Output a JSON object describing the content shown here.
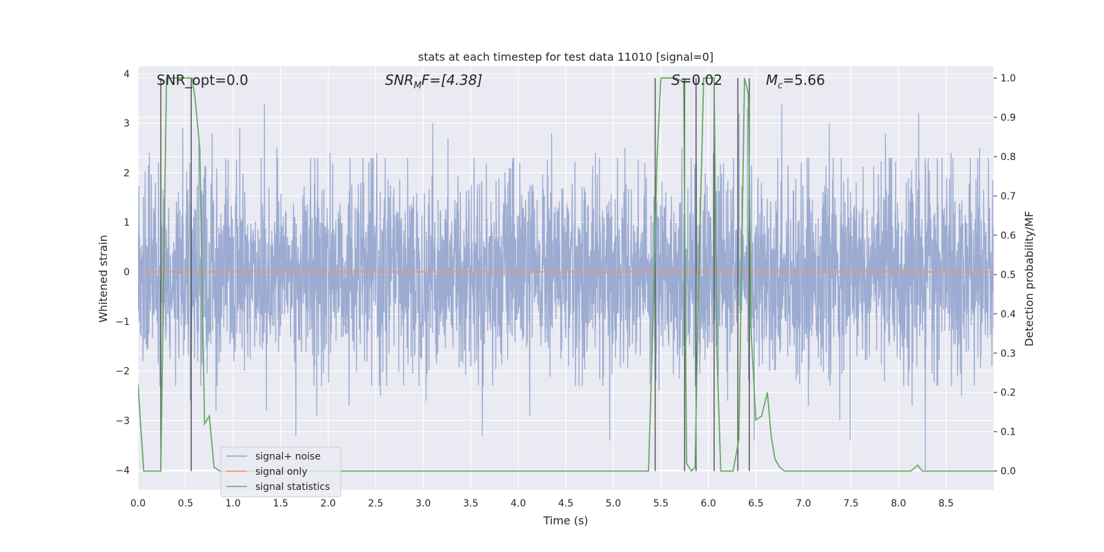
{
  "chart_data": {
    "type": "line",
    "title": "stats at each timestep for test data 11010 [signal=0]",
    "xlabel": "Time (s)",
    "ylabel_left": "Whitened strain",
    "ylabel_right": "Detection probability/MF",
    "xlim": [
      0,
      9.0
    ],
    "ylim_left": [
      -4.4,
      4.15
    ],
    "ylim_right": [
      -0.048,
      1.03
    ],
    "x_ticks": [
      "0.0",
      "0.5",
      "1.0",
      "1.5",
      "2.0",
      "2.5",
      "3.0",
      "3.5",
      "4.0",
      "4.5",
      "5.0",
      "5.5",
      "6.0",
      "6.5",
      "7.0",
      "7.5",
      "8.0",
      "8.5"
    ],
    "y_left_ticks": [
      "−4",
      "−3",
      "−2",
      "−1",
      "0",
      "1",
      "2",
      "3",
      "4"
    ],
    "y_right_ticks": [
      "0.0",
      "0.1",
      "0.2",
      "0.3",
      "0.4",
      "0.5",
      "0.6",
      "0.7",
      "0.8",
      "0.9",
      "1.0"
    ],
    "grid": true,
    "legend_position": "lower-left",
    "annotations": {
      "snr_opt": "SNR_opt=0.0",
      "snr_mf_main": "SNR",
      "snr_mf_sub": "M",
      "snr_mf_rest": "F=[4.38]",
      "s_italic": "S",
      "s_rest": "=0.02",
      "mc_main": "M",
      "mc_sub": "c",
      "mc_rest": "=5.66"
    },
    "series": [
      {
        "name": "signal+ noise",
        "axis": "left",
        "color": "#8da0cb",
        "amplitude_sigma": 0.95,
        "peak_samples": [
          [
            0.12,
            2.4
          ],
          [
            0.23,
            -2.3
          ],
          [
            0.47,
            2.9
          ],
          [
            0.55,
            -2.6
          ],
          [
            0.64,
            2.6
          ],
          [
            0.78,
            2.8
          ],
          [
            0.82,
            -2.8
          ],
          [
            1.07,
            2.9
          ],
          [
            1.12,
            -2.0
          ],
          [
            1.33,
            3.4
          ],
          [
            1.35,
            -2.8
          ],
          [
            1.46,
            2.5
          ],
          [
            1.66,
            -3.3
          ],
          [
            1.88,
            -2.9
          ],
          [
            2.02,
            2.4
          ],
          [
            2.22,
            -2.7
          ],
          [
            2.51,
            2.4
          ],
          [
            2.55,
            -2.5
          ],
          [
            3.03,
            -2.6
          ],
          [
            3.1,
            3.0
          ],
          [
            3.26,
            2.7
          ],
          [
            3.62,
            -3.3
          ],
          [
            3.95,
            2.3
          ],
          [
            4.12,
            -2.9
          ],
          [
            4.35,
            2.8
          ],
          [
            4.81,
            2.4
          ],
          [
            4.96,
            -3.4
          ],
          [
            5.12,
            2.5
          ],
          [
            5.33,
            2.2
          ],
          [
            5.48,
            -2.4
          ],
          [
            5.72,
            2.5
          ],
          [
            5.86,
            -2.3
          ],
          [
            6.05,
            2.4
          ],
          [
            6.2,
            -2.6
          ],
          [
            6.32,
            3.2
          ],
          [
            6.41,
            3.3
          ],
          [
            6.48,
            -3.4
          ],
          [
            6.77,
            3.4
          ],
          [
            7.05,
            -2.7
          ],
          [
            7.27,
            3.0
          ],
          [
            7.38,
            -3.0
          ],
          [
            7.49,
            -3.4
          ],
          [
            7.86,
            2.8
          ],
          [
            8.14,
            -2.7
          ],
          [
            8.21,
            3.2
          ],
          [
            8.28,
            -4.0
          ],
          [
            8.55,
            2.4
          ],
          [
            8.66,
            -2.5
          ],
          [
            8.85,
            2.5
          ],
          [
            8.98,
            -1.9
          ]
        ]
      },
      {
        "name": "signal only",
        "axis": "left",
        "color": "#fc8d62",
        "x": [
          0,
          9.0
        ],
        "y": [
          0,
          0
        ]
      },
      {
        "name": "signal statistics",
        "axis": "right",
        "color": "#66a961",
        "x": [
          0.0,
          0.06,
          0.12,
          0.18,
          0.24,
          0.3,
          0.36,
          0.42,
          0.48,
          0.54,
          0.57,
          0.6,
          0.65,
          0.7,
          0.75,
          0.8,
          0.86,
          0.92,
          1.0,
          2.0,
          3.0,
          4.0,
          5.0,
          5.37,
          5.42,
          5.46,
          5.5,
          5.55,
          5.6,
          5.66,
          5.74,
          5.77,
          5.82,
          5.86,
          5.89,
          5.95,
          6.0,
          6.06,
          6.09,
          6.13,
          6.26,
          6.32,
          6.38,
          6.42,
          6.45,
          6.5,
          6.56,
          6.62,
          6.66,
          6.7,
          6.75,
          6.8,
          6.9,
          7.0,
          7.5,
          8.0,
          8.13,
          8.2,
          8.25,
          8.3,
          8.5,
          9.0
        ],
        "y": [
          0.22,
          0.0,
          0.0,
          0.0,
          0.0,
          1.0,
          1.0,
          1.0,
          1.0,
          1.0,
          1.0,
          0.95,
          0.82,
          0.12,
          0.14,
          0.01,
          0.0,
          0.0,
          0.0,
          0.0,
          0.0,
          0.0,
          0.0,
          0.0,
          0.4,
          0.8,
          1.0,
          1.0,
          1.0,
          1.0,
          0.99,
          0.02,
          0.0,
          0.01,
          0.4,
          1.0,
          1.0,
          1.0,
          0.3,
          0.0,
          0.0,
          0.08,
          1.0,
          0.96,
          0.35,
          0.13,
          0.14,
          0.2,
          0.09,
          0.03,
          0.01,
          0.0,
          0.0,
          0.0,
          0.0,
          0.0,
          0.0,
          0.015,
          0.0,
          0.0,
          0.0,
          0.0
        ]
      }
    ],
    "vertical_markers": {
      "color": "#555555",
      "axis": "right",
      "x": [
        0.24,
        0.56,
        5.44,
        5.75,
        5.87,
        6.06,
        6.31,
        6.43
      ],
      "y_top": 1.0,
      "y_bottom": 0.0
    }
  }
}
